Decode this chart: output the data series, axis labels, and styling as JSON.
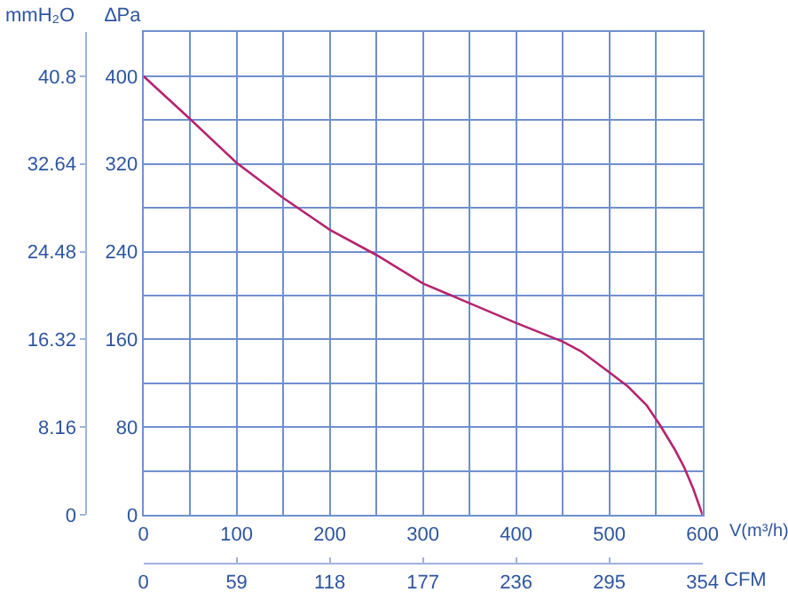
{
  "chart_data": {
    "type": "line",
    "xlabel": "V(m³/h)",
    "x2label": "CFM",
    "ylabel": "∆Pa",
    "y2label": "mmH₂O",
    "x": [
      0,
      50,
      100,
      150,
      200,
      250,
      300,
      350,
      400,
      450,
      470,
      500,
      520,
      540,
      555,
      570,
      580,
      590,
      600
    ],
    "series": [
      {
        "color": "#b5246f",
        "values": [
          400,
          361,
          321,
          289,
          260,
          237,
          211,
          193,
          175,
          158,
          149,
          130,
          117,
          100,
          81,
          60,
          44,
          24,
          0
        ]
      }
    ],
    "xlim": [
      0,
      600
    ],
    "xticks": [
      0,
      {
        "value": 50,
        "label": null
      },
      100,
      {
        "value": 150,
        "label": null
      },
      200,
      {
        "value": 250,
        "label": null
      },
      300,
      {
        "value": 350,
        "label": null
      },
      400,
      {
        "value": 450,
        "label": null
      },
      500,
      {
        "value": 550,
        "label": null
      },
      600
    ],
    "x2lim": [
      0,
      354
    ],
    "x2ticks": [
      0,
      59,
      118,
      177,
      236,
      295,
      354
    ],
    "ylim": [
      0,
      440
    ],
    "yticks": [
      0,
      {
        "value": 40,
        "label": null
      },
      80,
      {
        "value": 120,
        "label": null
      },
      160,
      {
        "value": 200,
        "label": null
      },
      240,
      {
        "value": 280,
        "label": null
      },
      320,
      {
        "value": 360,
        "label": null
      },
      400
    ],
    "y2lim": [
      0,
      44.88
    ],
    "y2ticks": [
      0,
      8.16,
      16.32,
      24.48,
      32.64,
      40.8
    ],
    "grid": true,
    "legend": false,
    "marker": "none",
    "line_style": "solid"
  }
}
